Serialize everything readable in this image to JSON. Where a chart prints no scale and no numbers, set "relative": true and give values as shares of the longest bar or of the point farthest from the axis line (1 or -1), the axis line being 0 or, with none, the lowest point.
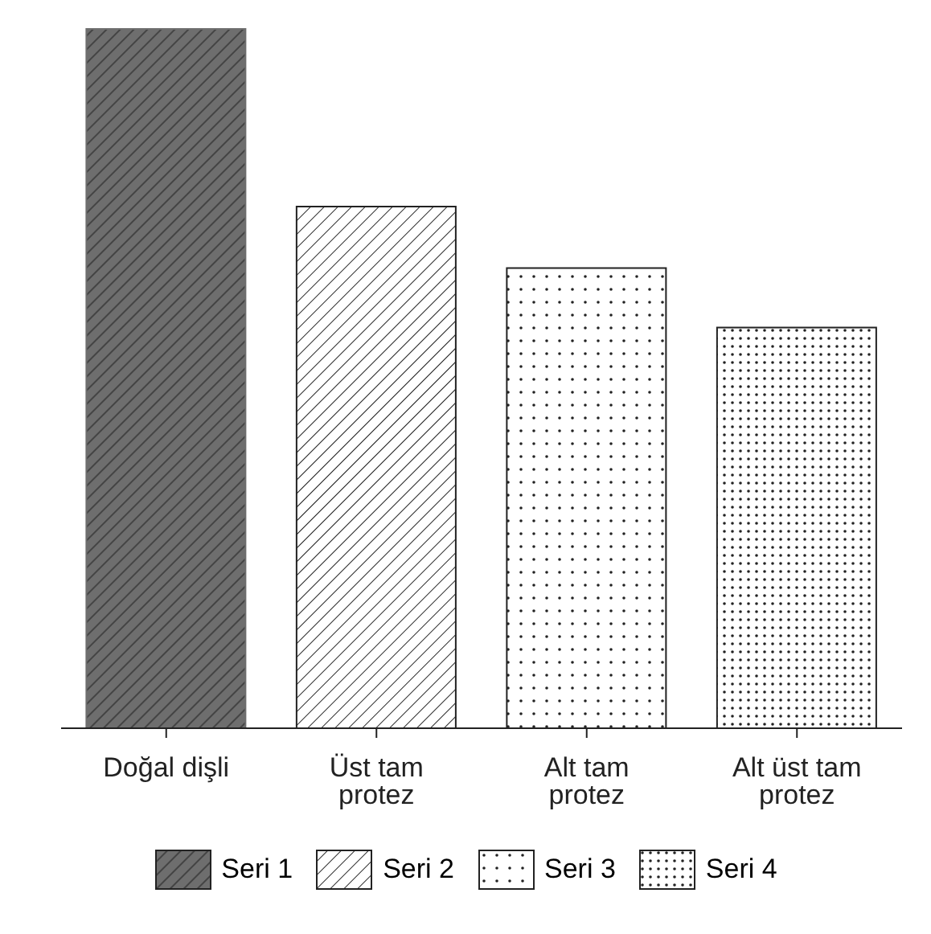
{
  "chart_data": {
    "type": "bar",
    "relative": true,
    "stacked": true,
    "categories": [
      "Doğal dişli",
      "Üst tam protez",
      "Alt tam protez",
      "Alt üst tam protez"
    ],
    "series": [
      {
        "name": "Seri 1",
        "color": "#6e6e6e",
        "values": [
          1,
          null,
          null,
          null
        ]
      },
      {
        "name": "Seri 2",
        "color": "#222222",
        "values": [
          null,
          0.746,
          null,
          null
        ]
      },
      {
        "name": "Seri 3",
        "color": "#222222",
        "values": [
          null,
          null,
          0.658,
          null
        ]
      },
      {
        "name": "Seri 4",
        "color": "#222222",
        "values": [
          null,
          null,
          null,
          0.573
        ]
      }
    ],
    "legend": "bottom"
  }
}
